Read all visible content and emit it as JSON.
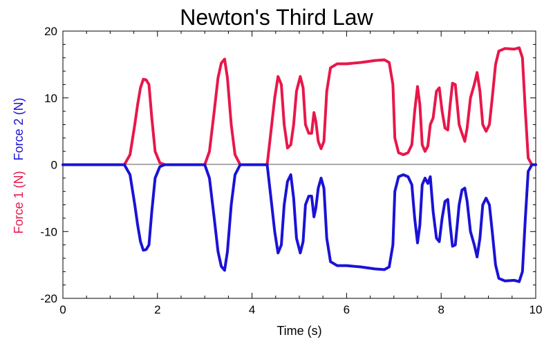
{
  "chart_data": {
    "type": "line",
    "title": "Newton's Third Law",
    "xlabel": "Time (s)",
    "ylabel_parts": [
      {
        "text": "Force 1 (N)",
        "color": "#e8174a"
      },
      {
        "text": "Force 2 (N)",
        "color": "#1a12d6"
      }
    ],
    "xlim": [
      0,
      10
    ],
    "ylim": [
      -20,
      20
    ],
    "x_ticks": [
      0,
      2,
      4,
      6,
      8,
      10
    ],
    "y_ticks": [
      20,
      10,
      0,
      -10,
      -20
    ],
    "grid": false,
    "series": [
      {
        "color": "#e8174a",
        "points": [
          [
            0,
            0
          ],
          [
            1.3,
            0
          ],
          [
            1.42,
            1.5
          ],
          [
            1.52,
            6
          ],
          [
            1.58,
            9
          ],
          [
            1.64,
            11.5
          ],
          [
            1.7,
            12.8
          ],
          [
            1.76,
            12.7
          ],
          [
            1.82,
            12
          ],
          [
            1.88,
            7
          ],
          [
            1.95,
            2
          ],
          [
            2.05,
            0.3
          ],
          [
            2.15,
            0
          ],
          [
            3.0,
            0
          ],
          [
            3.1,
            2
          ],
          [
            3.2,
            8
          ],
          [
            3.28,
            13
          ],
          [
            3.35,
            15.2
          ],
          [
            3.42,
            15.8
          ],
          [
            3.48,
            13
          ],
          [
            3.56,
            6
          ],
          [
            3.64,
            1.5
          ],
          [
            3.75,
            0
          ],
          [
            4.32,
            0
          ],
          [
            4.4,
            5
          ],
          [
            4.48,
            10
          ],
          [
            4.55,
            13.2
          ],
          [
            4.62,
            12
          ],
          [
            4.68,
            6
          ],
          [
            4.75,
            2.5
          ],
          [
            4.82,
            3
          ],
          [
            4.88,
            6
          ],
          [
            4.94,
            11
          ],
          [
            5.02,
            13.2
          ],
          [
            5.08,
            11.5
          ],
          [
            5.13,
            6
          ],
          [
            5.2,
            4.7
          ],
          [
            5.26,
            4.7
          ],
          [
            5.31,
            7.8
          ],
          [
            5.35,
            6.5
          ],
          [
            5.4,
            3.5
          ],
          [
            5.46,
            2.4
          ],
          [
            5.52,
            3.5
          ],
          [
            5.58,
            11
          ],
          [
            5.66,
            14.5
          ],
          [
            5.8,
            15.1
          ],
          [
            6.0,
            15.1
          ],
          [
            6.3,
            15.3
          ],
          [
            6.6,
            15.6
          ],
          [
            6.8,
            15.7
          ],
          [
            6.9,
            15.3
          ],
          [
            6.98,
            12
          ],
          [
            7.02,
            4
          ],
          [
            7.1,
            1.8
          ],
          [
            7.2,
            1.5
          ],
          [
            7.3,
            1.8
          ],
          [
            7.38,
            3
          ],
          [
            7.44,
            8
          ],
          [
            7.5,
            11.7
          ],
          [
            7.55,
            9
          ],
          [
            7.6,
            3
          ],
          [
            7.66,
            2
          ],
          [
            7.72,
            2.8
          ],
          [
            7.77,
            6
          ],
          [
            7.83,
            7
          ],
          [
            7.9,
            11
          ],
          [
            7.96,
            11.5
          ],
          [
            8.02,
            8
          ],
          [
            8.08,
            5.5
          ],
          [
            8.14,
            5.2
          ],
          [
            8.19,
            9
          ],
          [
            8.24,
            12.2
          ],
          [
            8.3,
            12
          ],
          [
            8.34,
            9
          ],
          [
            8.38,
            6
          ],
          [
            8.44,
            4.7
          ],
          [
            8.5,
            3.5
          ],
          [
            8.55,
            5.5
          ],
          [
            8.62,
            10
          ],
          [
            8.7,
            12
          ],
          [
            8.76,
            13.8
          ],
          [
            8.82,
            11
          ],
          [
            8.88,
            6
          ],
          [
            8.95,
            5
          ],
          [
            9.02,
            6
          ],
          [
            9.08,
            10
          ],
          [
            9.15,
            15
          ],
          [
            9.22,
            17
          ],
          [
            9.35,
            17.4
          ],
          [
            9.55,
            17.3
          ],
          [
            9.65,
            17.5
          ],
          [
            9.72,
            16
          ],
          [
            9.78,
            8
          ],
          [
            9.84,
            1
          ],
          [
            9.92,
            0
          ],
          [
            10.0,
            0
          ]
        ]
      },
      {
        "color": "#1a12d6",
        "points": [
          [
            0,
            0
          ],
          [
            1.3,
            0
          ],
          [
            1.42,
            -1.5
          ],
          [
            1.52,
            -6
          ],
          [
            1.58,
            -9
          ],
          [
            1.64,
            -11.5
          ],
          [
            1.7,
            -12.8
          ],
          [
            1.76,
            -12.7
          ],
          [
            1.82,
            -12
          ],
          [
            1.88,
            -7
          ],
          [
            1.95,
            -2
          ],
          [
            2.05,
            -0.3
          ],
          [
            2.15,
            0
          ],
          [
            3.0,
            0
          ],
          [
            3.1,
            -2
          ],
          [
            3.2,
            -8
          ],
          [
            3.28,
            -13
          ],
          [
            3.35,
            -15.2
          ],
          [
            3.42,
            -15.8
          ],
          [
            3.48,
            -13
          ],
          [
            3.56,
            -6
          ],
          [
            3.64,
            -1.5
          ],
          [
            3.75,
            0
          ],
          [
            4.32,
            0
          ],
          [
            4.4,
            -5
          ],
          [
            4.48,
            -10
          ],
          [
            4.55,
            -13.2
          ],
          [
            4.62,
            -12
          ],
          [
            4.68,
            -6
          ],
          [
            4.75,
            -2.5
          ],
          [
            4.82,
            -1.5
          ],
          [
            4.88,
            -5
          ],
          [
            4.94,
            -11
          ],
          [
            5.02,
            -13.2
          ],
          [
            5.08,
            -11.5
          ],
          [
            5.13,
            -6
          ],
          [
            5.2,
            -4.7
          ],
          [
            5.26,
            -4.7
          ],
          [
            5.31,
            -7.8
          ],
          [
            5.35,
            -6.5
          ],
          [
            5.4,
            -3.5
          ],
          [
            5.46,
            -2
          ],
          [
            5.52,
            -3.5
          ],
          [
            5.58,
            -11
          ],
          [
            5.66,
            -14.5
          ],
          [
            5.8,
            -15.1
          ],
          [
            6.0,
            -15.1
          ],
          [
            6.3,
            -15.3
          ],
          [
            6.6,
            -15.6
          ],
          [
            6.8,
            -15.7
          ],
          [
            6.9,
            -15.3
          ],
          [
            6.98,
            -12
          ],
          [
            7.02,
            -4
          ],
          [
            7.1,
            -1.8
          ],
          [
            7.2,
            -1.5
          ],
          [
            7.3,
            -1.8
          ],
          [
            7.38,
            -3
          ],
          [
            7.44,
            -8
          ],
          [
            7.5,
            -11.7
          ],
          [
            7.55,
            -9
          ],
          [
            7.6,
            -3
          ],
          [
            7.66,
            -2
          ],
          [
            7.72,
            -2.8
          ],
          [
            7.77,
            -1.8
          ],
          [
            7.83,
            -7
          ],
          [
            7.9,
            -11
          ],
          [
            7.96,
            -11.5
          ],
          [
            8.02,
            -8
          ],
          [
            8.08,
            -5.5
          ],
          [
            8.14,
            -5.2
          ],
          [
            8.19,
            -9
          ],
          [
            8.24,
            -12.2
          ],
          [
            8.3,
            -12
          ],
          [
            8.34,
            -9
          ],
          [
            8.38,
            -6
          ],
          [
            8.44,
            -3.8
          ],
          [
            8.5,
            -3.5
          ],
          [
            8.55,
            -5.5
          ],
          [
            8.62,
            -10
          ],
          [
            8.7,
            -12
          ],
          [
            8.76,
            -13.8
          ],
          [
            8.82,
            -11
          ],
          [
            8.88,
            -6
          ],
          [
            8.95,
            -5
          ],
          [
            9.02,
            -6
          ],
          [
            9.08,
            -10
          ],
          [
            9.15,
            -15
          ],
          [
            9.22,
            -17
          ],
          [
            9.35,
            -17.4
          ],
          [
            9.55,
            -17.3
          ],
          [
            9.65,
            -17.5
          ],
          [
            9.72,
            -16
          ],
          [
            9.78,
            -8
          ],
          [
            9.84,
            -1
          ],
          [
            9.92,
            0
          ],
          [
            10.0,
            0
          ]
        ]
      }
    ]
  }
}
